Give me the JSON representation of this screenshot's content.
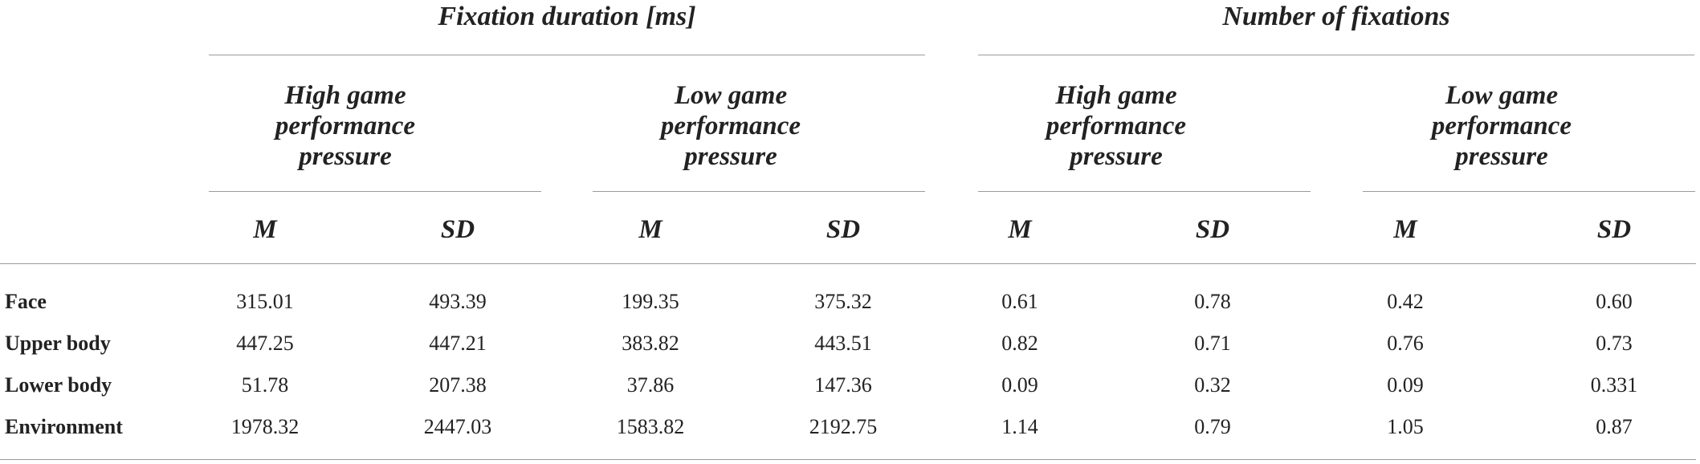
{
  "table": {
    "groups": [
      {
        "title": "Fixation duration [ms]",
        "subgroups": [
          {
            "title": "High game performance pressure"
          },
          {
            "title": "Low game performance pressure"
          }
        ]
      },
      {
        "title": "Number of fixations",
        "subgroups": [
          {
            "title": "High game performance pressure"
          },
          {
            "title": "Low game performance pressure"
          }
        ]
      }
    ],
    "stat_labels": {
      "m": "M",
      "sd": "SD"
    },
    "rows": [
      {
        "label": "Face",
        "values": [
          "315.01",
          "493.39",
          "199.35",
          "375.32",
          "0.61",
          "0.78",
          "0.42",
          "0.60"
        ]
      },
      {
        "label": "Upper body",
        "values": [
          "447.25",
          "447.21",
          "383.82",
          "443.51",
          "0.82",
          "0.71",
          "0.76",
          "0.73"
        ]
      },
      {
        "label": "Lower body",
        "values": [
          "51.78",
          "207.38",
          "37.86",
          "147.36",
          "0.09",
          "0.32",
          "0.09",
          "0.331"
        ]
      },
      {
        "label": "Environment",
        "values": [
          "1978.32",
          "2447.03",
          "1583.82",
          "2192.75",
          "1.14",
          "0.79",
          "1.05",
          "0.87"
        ]
      }
    ]
  }
}
